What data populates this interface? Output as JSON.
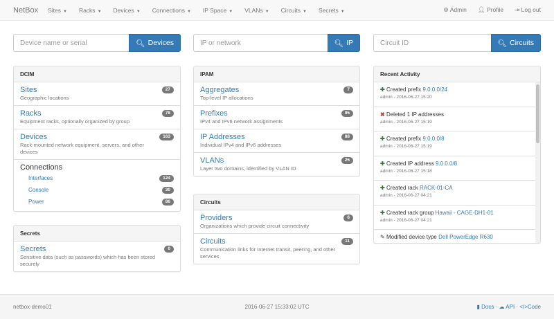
{
  "nav": {
    "brand": "NetBox",
    "menus": [
      "Sites",
      "Racks",
      "Devices",
      "Connections",
      "IP Space",
      "VLANs",
      "Circuits",
      "Secrets"
    ],
    "admin": "Admin",
    "profile": "Profile",
    "logout": "Log out"
  },
  "search": {
    "device": {
      "placeholder": "Device name or serial",
      "button": "Devices"
    },
    "ip": {
      "placeholder": "IP or network",
      "button": "IP"
    },
    "circuit": {
      "placeholder": "Circuit ID",
      "button": "Circuits"
    }
  },
  "dcim": {
    "title": "DCIM",
    "items": [
      {
        "title": "Sites",
        "desc": "Geographic locations",
        "count": "27"
      },
      {
        "title": "Racks",
        "desc": "Equipment racks, optionally organized by group",
        "count": "78"
      },
      {
        "title": "Devices",
        "desc": "Rack-mounted network equipment, servers, and other devices",
        "count": "163"
      }
    ],
    "connections": {
      "title": "Connections",
      "items": [
        {
          "label": "Interfaces",
          "count": "124"
        },
        {
          "label": "Console",
          "count": "30"
        },
        {
          "label": "Power",
          "count": "86"
        }
      ]
    }
  },
  "secrets": {
    "title": "Secrets",
    "items": [
      {
        "title": "Secrets",
        "desc": "Sensitive data (such as passwords) which has been stored securely",
        "count": "0"
      }
    ]
  },
  "ipam": {
    "title": "IPAM",
    "items": [
      {
        "title": "Aggregates",
        "desc": "Top-level IP allocations",
        "count": "7"
      },
      {
        "title": "Prefixes",
        "desc": "IPv4 and IPv6 network assignments",
        "count": "95"
      },
      {
        "title": "IP Addresses",
        "desc": "Individual IPv4 and IPv6 addresses",
        "count": "88"
      },
      {
        "title": "VLANs",
        "desc": "Layer two domains, identified by VLAN ID",
        "count": "25"
      }
    ]
  },
  "circuits": {
    "title": "Circuits",
    "items": [
      {
        "title": "Providers",
        "desc": "Organizations which provide circuit connectivity",
        "count": "6"
      },
      {
        "title": "Circuits",
        "desc": "Communication links for Internet transit, peering, and other services",
        "count": "11"
      }
    ]
  },
  "activity": {
    "title": "Recent Activity",
    "items": [
      {
        "icon": "plus",
        "action": "Created prefix",
        "link": "9.0.0.0/24",
        "meta": "admin - 2016-06-27 15:20"
      },
      {
        "icon": "remove",
        "action": "Deleted 1 IP addresses",
        "link": "",
        "meta": "admin - 2016-06-27 15:19"
      },
      {
        "icon": "plus",
        "action": "Created prefix",
        "link": "9.0.0.0/8",
        "meta": "admin - 2016-06-27 15:19"
      },
      {
        "icon": "plus",
        "action": "Created IP address",
        "link": "9.0.0.0/8",
        "meta": "admin - 2016-06-27 15:18"
      },
      {
        "icon": "plus",
        "action": "Created rack",
        "link": "RACK-01-CA",
        "meta": "admin - 2016-06-27 04:21"
      },
      {
        "icon": "plus",
        "action": "Created rack group",
        "link": "Hawaii - CAGE-DH1-01",
        "meta": "admin - 2016-06-27 04:21"
      },
      {
        "icon": "pencil",
        "action": "Modified device type",
        "link": "Dell PowerEdge R630",
        "meta": ""
      }
    ]
  },
  "footer": {
    "host": "netbox-demo01",
    "time": "2016-06-27 15:33:02 UTC",
    "docs": "Docs",
    "api": "API",
    "code": "Code"
  }
}
